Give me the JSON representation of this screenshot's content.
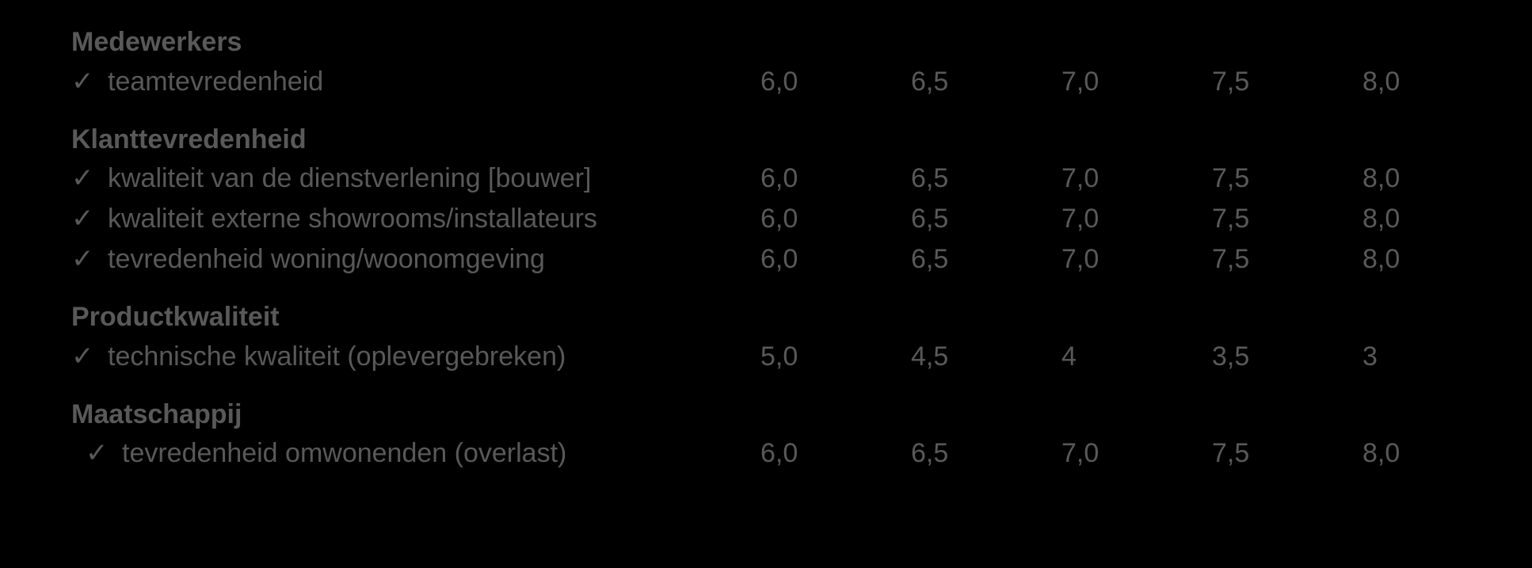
{
  "slide": {
    "background_color": "#000000",
    "text_color": "#595959",
    "check_glyph": "✓",
    "font_size_pt": 26,
    "sections": [
      {
        "header": "Medewerkers",
        "rows": [
          {
            "label": "teamtevredenheid",
            "values": [
              "6,0",
              "6,5",
              "7,0",
              "7,5",
              "8,0"
            ],
            "indent": false
          }
        ]
      },
      {
        "header": "Klanttevredenheid",
        "rows": [
          {
            "label": "kwaliteit van de dienstverlening [bouwer]",
            "values": [
              "6,0",
              "6,5",
              "7,0",
              "7,5",
              "8,0"
            ],
            "indent": false
          },
          {
            "label": "kwaliteit externe showrooms/installateurs",
            "values": [
              "6,0",
              "6,5",
              "7,0",
              "7,5",
              "8,0"
            ],
            "indent": false
          },
          {
            "label": "tevredenheid woning/woonomgeving",
            "values": [
              "6,0",
              "6,5",
              "7,0",
              "7,5",
              "8,0"
            ],
            "indent": false
          }
        ]
      },
      {
        "header": "Productkwaliteit",
        "rows": [
          {
            "label": "technische kwaliteit (oplevergebreken)",
            "values": [
              "5,0",
              "4,5",
              "4",
              "3,5",
              "3"
            ],
            "indent": false
          }
        ]
      },
      {
        "header": "Maatschappij",
        "rows": [
          {
            "label": "tevredenheid omwonenden (overlast)",
            "values": [
              "6,0",
              "6,5",
              "7,0",
              "7,5",
              "8,0"
            ],
            "indent": true
          }
        ]
      }
    ]
  }
}
